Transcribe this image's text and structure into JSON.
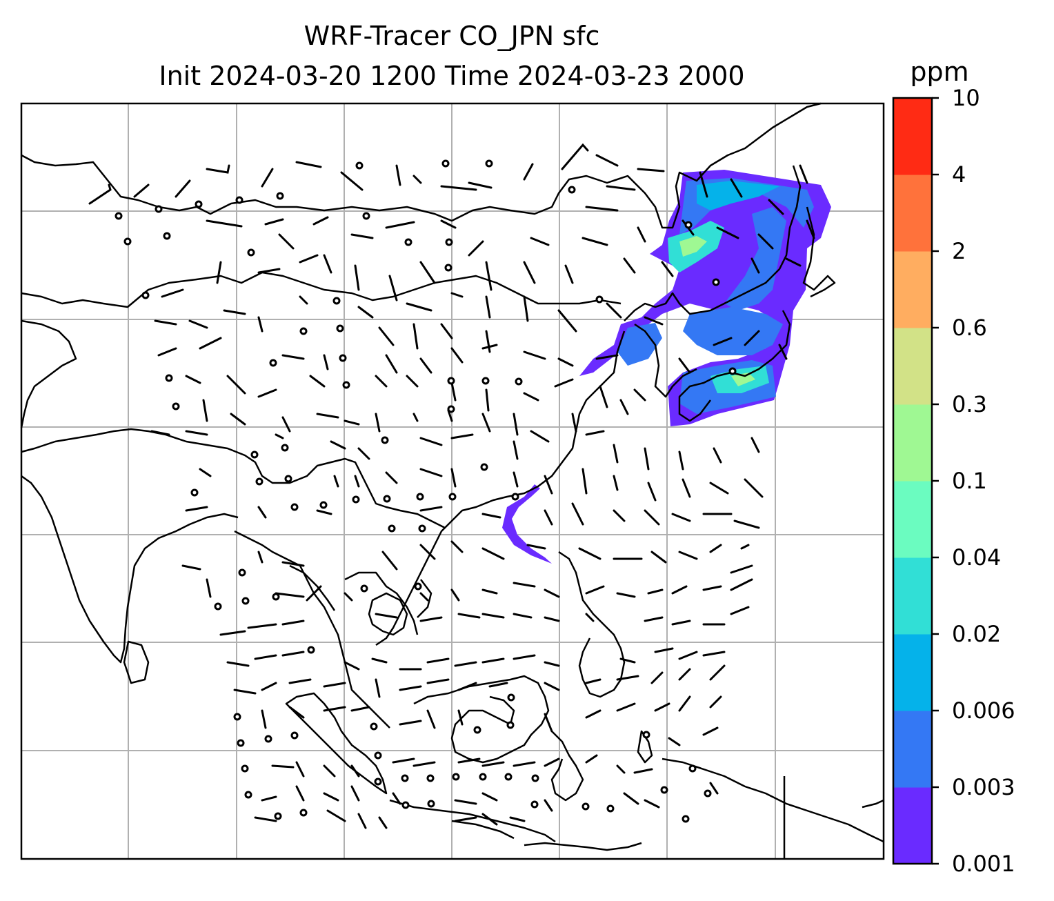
{
  "title": {
    "line1": "WRF-Tracer CO_JPN sfc",
    "line2": "Init 2024-03-20 1200 Time 2024-03-23 2000"
  },
  "colorbar": {
    "unit": "ppm",
    "ticks": [
      "0.001",
      "0.003",
      "0.006",
      "0.02",
      "0.04",
      "0.1",
      "0.3",
      "0.6",
      "2",
      "4",
      "10"
    ],
    "colors": [
      "#6a2bff",
      "#3478f4",
      "#05b2ea",
      "#31dfd6",
      "#6bfcc0",
      "#9ff893",
      "#d2e287",
      "#ffad60",
      "#ff723b",
      "#ff2b14"
    ]
  },
  "map": {
    "background": "#ffffff",
    "gridline_color": "#b0b0b0",
    "coastline_color": "#000000",
    "grid": true
  }
}
